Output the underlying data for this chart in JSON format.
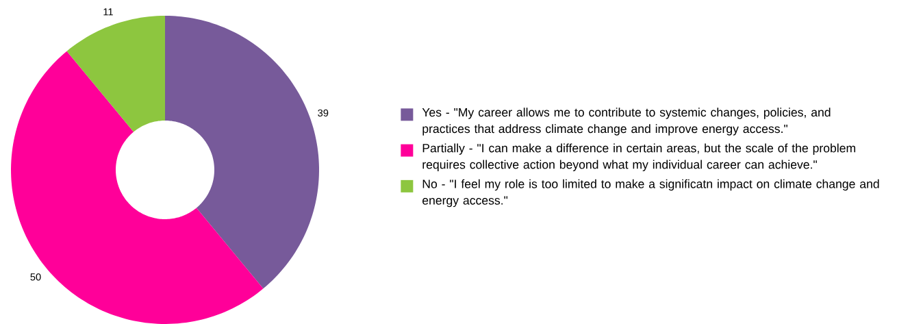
{
  "chart_data": {
    "type": "donut",
    "categories": [
      "Yes - \"My career allows me to contribute to systemic changes, policies, and practices that address climate change and improve energy access.\"",
      "Partially - \"I can make a difference in certain areas, but the scale of the problem requires collective action beyond what my individual career can achieve.\"",
      "No - \"I feel my role is too limited to make a significatn impact on climate change and energy access.\""
    ],
    "values": [
      39,
      50,
      11
    ],
    "colors": [
      "#775a9a",
      "#ff0099",
      "#8dc63f"
    ],
    "data_labels": true,
    "legend": "right"
  }
}
